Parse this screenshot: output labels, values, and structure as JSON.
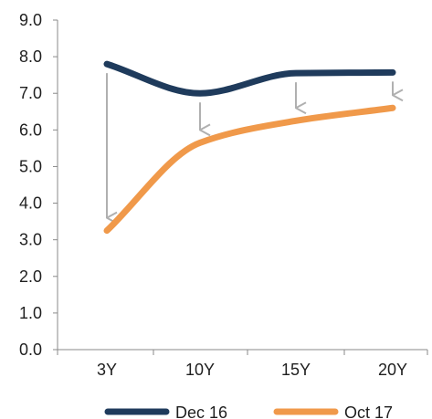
{
  "chart_data": {
    "type": "line",
    "categories": [
      "3Y",
      "10Y",
      "15Y",
      "20Y"
    ],
    "y_ticks": [
      "0.0",
      "1.0",
      "2.0",
      "3.0",
      "4.0",
      "5.0",
      "6.0",
      "7.0",
      "8.0",
      "9.0"
    ],
    "ylim": [
      0,
      9
    ],
    "series": [
      {
        "name": "Dec 16",
        "color": "#1f3b5c",
        "values": [
          7.8,
          7.0,
          7.55,
          7.57
        ]
      },
      {
        "name": "Oct 17",
        "color": "#f0994a",
        "values": [
          3.25,
          5.65,
          6.25,
          6.6
        ]
      }
    ],
    "annotations": {
      "arrow_color": "#b0b0b0",
      "arrows_from_series": "Dec 16",
      "arrows_to_series": "Oct 17"
    },
    "legend_position": "bottom",
    "grid": false
  }
}
